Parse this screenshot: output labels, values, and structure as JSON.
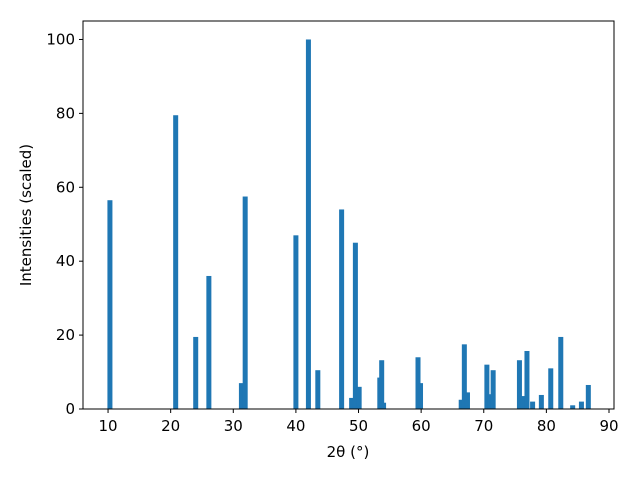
{
  "chart_data": {
    "type": "bar",
    "xlabel": "2θ (°)",
    "ylabel": "Intensities (scaled)",
    "x": [
      10.3,
      20.8,
      24.0,
      26.1,
      31.3,
      31.9,
      40.0,
      42.0,
      43.5,
      47.3,
      48.9,
      49.5,
      50.1,
      53.4,
      53.7,
      54.0,
      59.5,
      59.9,
      66.4,
      66.9,
      67.4,
      70.5,
      71.0,
      71.5,
      75.7,
      76.2,
      76.9,
      77.8,
      79.2,
      80.7,
      82.3,
      84.2,
      85.6,
      86.7
    ],
    "values": [
      56.5,
      79.5,
      19.5,
      36,
      7,
      57.5,
      47,
      100,
      10.5,
      54,
      3,
      45,
      6,
      8.5,
      13.2,
      1.7,
      14,
      7,
      2.5,
      17.5,
      4.5,
      12,
      4,
      10.5,
      13.2,
      3.5,
      15.7,
      2,
      3.8,
      11,
      19.5,
      1,
      2,
      6.5
    ],
    "color": "#1f77b4",
    "xlim": [
      6,
      90.8
    ],
    "xticks": [
      10,
      20,
      30,
      40,
      50,
      60,
      70,
      80,
      90
    ],
    "ylim": [
      0,
      105
    ],
    "yticks": [
      0,
      20,
      40,
      60,
      80,
      100
    ]
  }
}
